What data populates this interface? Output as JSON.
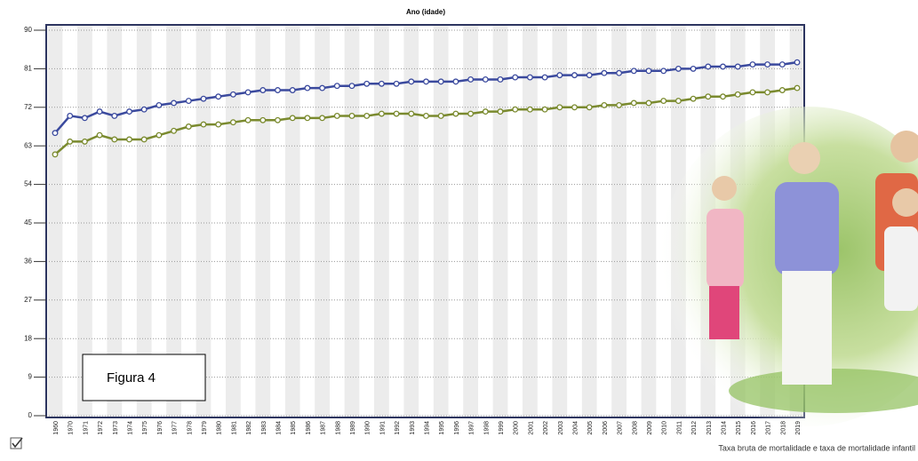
{
  "chart_data": {
    "type": "line",
    "title": "Ano (idade)",
    "categories": [
      "1960",
      "1970",
      "1971",
      "1972",
      "1973",
      "1974",
      "1975",
      "1976",
      "1977",
      "1978",
      "1979",
      "1980",
      "1981",
      "1982",
      "1983",
      "1984",
      "1985",
      "1986",
      "1987",
      "1988",
      "1989",
      "1990",
      "1991",
      "1992",
      "1993",
      "1994",
      "1995",
      "1996",
      "1997",
      "1998",
      "1999",
      "2000",
      "2001",
      "2002",
      "2003",
      "2004",
      "2005",
      "2006",
      "2007",
      "2008",
      "2009",
      "2010",
      "2011",
      "2012",
      "2013",
      "2014",
      "2015",
      "2016",
      "2017",
      "2018",
      "2019"
    ],
    "series": [
      {
        "color": "#3b4a9e",
        "values": [
          66,
          70,
          69.5,
          71,
          70,
          71,
          71.5,
          72.5,
          73,
          73.5,
          74,
          74.5,
          75,
          75.5,
          76,
          76,
          76,
          76.5,
          76.5,
          77,
          77,
          77.5,
          77.5,
          77.5,
          78,
          78,
          78,
          78,
          78.5,
          78.5,
          78.5,
          79,
          79,
          79,
          79.5,
          79.5,
          79.5,
          80,
          80,
          80.5,
          80.5,
          80.5,
          81,
          81,
          81.5,
          81.5,
          81.5,
          82,
          82,
          82,
          82.5
        ]
      },
      {
        "color": "#7a8a2e",
        "values": [
          61,
          64,
          64,
          65.5,
          64.5,
          64.5,
          64.5,
          65.5,
          66.5,
          67.5,
          68,
          68,
          68.5,
          69,
          69,
          69,
          69.5,
          69.5,
          69.5,
          70,
          70,
          70,
          70.5,
          70.5,
          70.5,
          70,
          70,
          70.5,
          70.5,
          71,
          71,
          71.5,
          71.5,
          71.5,
          72,
          72,
          72,
          72.5,
          72.5,
          73,
          73,
          73.5,
          73.5,
          74,
          74.5,
          74.5,
          75,
          75.5,
          75.5,
          76,
          76.5
        ]
      }
    ],
    "ylim": [
      0,
      90
    ],
    "yticks": [
      0,
      9,
      18,
      27,
      36,
      45,
      54,
      63,
      72,
      81,
      90
    ],
    "grid": true,
    "annotation": "Figura 4",
    "legend_text": "Taxa bruta de mortalidade e taxa de mortalidade infantil"
  }
}
